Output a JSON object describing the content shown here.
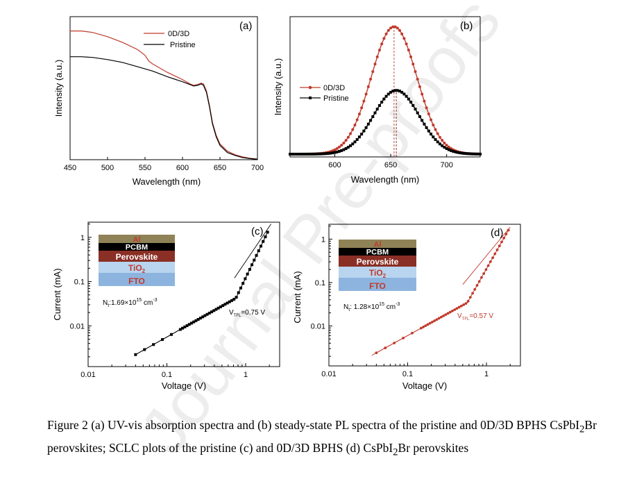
{
  "watermark": "Journal Pre-proofs",
  "caption": {
    "prefix": "Figure 2 (a) UV-vis absorption spectra and (b) steady-state PL spectra of the pristine and 0D/3D BPHS CsPbI",
    "sub1": "2",
    "suffix": "Br perovskites; SCLC plots of the pristine (c) and 0D/3D BPHS (d) CsPbI",
    "sub2": "2",
    "suffix2": "Br perovskites"
  },
  "colors": {
    "series_0d3d": "#c0392b",
    "series_pristine": "#000000",
    "al": "#8f8256",
    "pcbm": "#000000",
    "perovskite": "#8a2f25",
    "tio2": "#b8d4ee",
    "fto": "#8db4de"
  },
  "chart_data": [
    {
      "id": "a",
      "type": "line",
      "panel_label": "(a)",
      "xlabel": "Wavelength (nm)",
      "ylabel": "Intensity (a.u.)",
      "xlim": [
        450,
        700
      ],
      "ylim": [
        0,
        1.0
      ],
      "xticks": [
        450,
        500,
        550,
        600,
        650,
        700
      ],
      "legend_position": "top-center",
      "series": [
        {
          "name": "0D/3D",
          "color": "#c0392b",
          "x": [
            450,
            465,
            480,
            500,
            520,
            540,
            550,
            555,
            560,
            580,
            600,
            610,
            615,
            620,
            625,
            628,
            632,
            636,
            640,
            645,
            650,
            660,
            670,
            680,
            690,
            700
          ],
          "y": [
            0.9,
            0.9,
            0.89,
            0.86,
            0.82,
            0.77,
            0.73,
            0.69,
            0.67,
            0.61,
            0.56,
            0.53,
            0.52,
            0.525,
            0.535,
            0.53,
            0.48,
            0.38,
            0.26,
            0.17,
            0.11,
            0.06,
            0.035,
            0.02,
            0.01,
            0.005
          ]
        },
        {
          "name": "Pristine",
          "color": "#000000",
          "x": [
            450,
            465,
            480,
            500,
            520,
            540,
            560,
            580,
            600,
            610,
            615,
            620,
            625,
            628,
            632,
            636,
            640,
            645,
            650,
            660,
            670,
            680,
            690,
            700
          ],
          "y": [
            0.72,
            0.72,
            0.715,
            0.7,
            0.68,
            0.65,
            0.62,
            0.58,
            0.545,
            0.525,
            0.515,
            0.52,
            0.53,
            0.52,
            0.47,
            0.37,
            0.25,
            0.16,
            0.1,
            0.05,
            0.03,
            0.015,
            0.008,
            0.003
          ]
        }
      ]
    },
    {
      "id": "b",
      "type": "line",
      "panel_label": "(b)",
      "xlabel": "Wavelength (nm)",
      "ylabel": "Intensity (a.u.)",
      "xlim": [
        560,
        730
      ],
      "ylim": [
        0,
        1.1
      ],
      "xticks": [
        600,
        650,
        700
      ],
      "legend_position": "center-left",
      "series": [
        {
          "name": "0D/3D",
          "color": "#c0392b",
          "marker": "circle",
          "peak_x": 653,
          "peak_y": 1.0,
          "fwhm": 48
        },
        {
          "name": "Pristine",
          "color": "#000000",
          "marker": "square",
          "peak_x": 655,
          "peak_y": 0.5,
          "fwhm": 48
        }
      ],
      "peak_markers": [
        {
          "x": 653,
          "color": "#c0392b"
        },
        {
          "x": 655,
          "color": "#7b1a12"
        }
      ]
    },
    {
      "id": "c",
      "type": "scatter",
      "scale": "log-log",
      "panel_label": "(c)",
      "xlabel": "Voltage (V)",
      "ylabel": "Current (mA)",
      "xlim": [
        0.01,
        2.7
      ],
      "ylim": [
        0.0012,
        2.2
      ],
      "xticks": [
        {
          "v": 0.01,
          "t": "0.01"
        },
        {
          "v": 0.1,
          "t": "0.1"
        },
        {
          "v": 1,
          "t": "1"
        }
      ],
      "yticks": [
        {
          "v": 0.01,
          "t": "0.01"
        },
        {
          "v": 0.1,
          "t": "0.1"
        },
        {
          "v": 1,
          "t": "1"
        }
      ],
      "series": [
        {
          "name": "Pristine",
          "color": "#000000",
          "marker": "square",
          "v_start": 0.04,
          "v_end": 1.9,
          "count": 60,
          "ohmic_coef": 0.056,
          "trap_exp": 3.7
        }
      ],
      "fit_lines": [
        {
          "from": [
            0.04,
            0.00224
          ],
          "to": [
            0.8,
            0.0448
          ]
        },
        {
          "from": [
            0.72,
            0.12
          ],
          "to": [
            2.1,
            2.0
          ]
        }
      ],
      "annotations": {
        "nt_prefix": "N",
        "nt_sub": "t",
        "nt_value": ":1.69×10",
        "nt_exp": "15",
        "nt_unit": " cm",
        "nt_unit_exp": "-3",
        "vtfl_prefix": "V",
        "vtfl_sub": "TFL",
        "vtfl_value": "=0.75 V",
        "vtfl_x": 0.75
      },
      "device_stack": [
        "Al",
        "PCBM",
        "Perovskite",
        "TiO2",
        "FTO"
      ]
    },
    {
      "id": "d",
      "type": "scatter",
      "scale": "log-log",
      "panel_label": "(d)",
      "xlabel": "Voltage (V)",
      "ylabel": "Current (mA)",
      "xlim": [
        0.01,
        2.7
      ],
      "ylim": [
        0.0012,
        2.2
      ],
      "xticks": [
        {
          "v": 0.01,
          "t": "0.01"
        },
        {
          "v": 0.1,
          "t": "0.1"
        },
        {
          "v": 1,
          "t": "1"
        }
      ],
      "yticks": [
        {
          "v": 0.01,
          "t": "0.01"
        },
        {
          "v": 0.1,
          "t": "0.1"
        },
        {
          "v": 1,
          "t": "1"
        }
      ],
      "series": [
        {
          "name": "0D/3D",
          "color": "#c0392b",
          "marker": "circle",
          "v_start": 0.04,
          "v_end": 1.9,
          "count": 60,
          "ohmic_coef": 0.06,
          "trap_exp": 3.2
        }
      ],
      "fit_lines": [
        {
          "from": [
            0.035,
            0.0021
          ],
          "to": [
            0.6,
            0.036
          ]
        },
        {
          "from": [
            0.5,
            0.09
          ],
          "to": [
            2.0,
            1.9
          ]
        }
      ],
      "annotations": {
        "nt_prefix": "N",
        "nt_sub": "t",
        "nt_value": ": 1.28×10",
        "nt_exp": "15",
        "nt_unit": " cm",
        "nt_unit_exp": "-3",
        "vtfl_prefix": "V",
        "vtfl_sub": "TFL",
        "vtfl_value": "=0.57 V",
        "vtfl_x": 0.57
      },
      "device_stack": [
        "Al",
        "PCBM",
        "Perovskite",
        "TiO2",
        "FTO"
      ]
    }
  ]
}
